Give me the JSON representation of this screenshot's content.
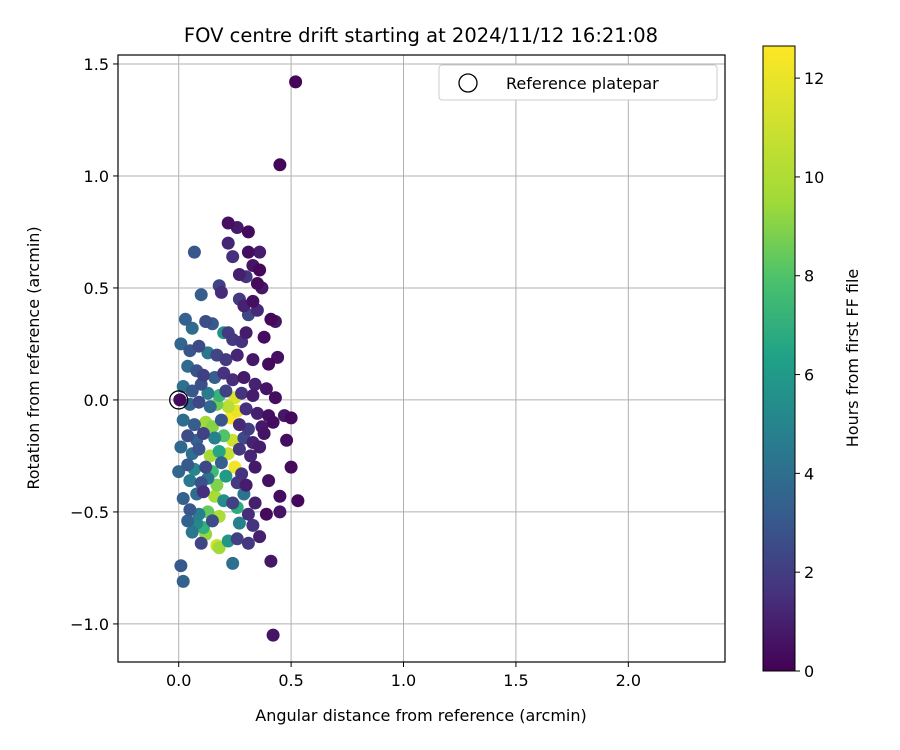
{
  "chart_data": {
    "type": "scatter",
    "title": "FOV centre drift starting at 2024/11/12 16:21:08",
    "xlabel": "Angular distance from reference (arcmin)",
    "ylabel": "Rotation from reference (arcmin)",
    "xlim": [
      -0.27,
      2.43
    ],
    "ylim": [
      -1.17,
      1.54
    ],
    "xticks": [
      0.0,
      0.5,
      1.0,
      1.5,
      2.0
    ],
    "xtick_labels": [
      "0.0",
      "0.5",
      "1.0",
      "1.5",
      "2.0"
    ],
    "yticks": [
      -1.0,
      -0.5,
      0.0,
      0.5,
      1.0,
      1.5
    ],
    "ytick_labels": [
      "−1.0",
      "−0.5",
      "0.0",
      "0.5",
      "1.0",
      "1.5"
    ],
    "grid": true,
    "legend": {
      "placement": "top-right",
      "entries": [
        "Reference platepar"
      ]
    },
    "reference_point": {
      "x": 0.0,
      "y": 0.0
    },
    "colorbar": {
      "label": "Hours from first FF file",
      "range": [
        0,
        12.65
      ],
      "ticks": [
        0,
        2,
        4,
        6,
        8,
        10,
        12
      ],
      "tick_labels": [
        "0",
        "2",
        "4",
        "6",
        "8",
        "10",
        "12"
      ],
      "colormap": "viridis"
    },
    "points": [
      {
        "x": 0.52,
        "y": 1.42,
        "h": 0.1
      },
      {
        "x": 0.45,
        "y": 1.05,
        "h": 0.2
      },
      {
        "x": 0.22,
        "y": 0.79,
        "h": 0.5
      },
      {
        "x": 0.31,
        "y": 0.75,
        "h": 0.3
      },
      {
        "x": 0.26,
        "y": 0.77,
        "h": 0.8
      },
      {
        "x": 0.07,
        "y": 0.66,
        "h": 3.0
      },
      {
        "x": 0.31,
        "y": 0.66,
        "h": 0.4
      },
      {
        "x": 0.36,
        "y": 0.66,
        "h": 0.9
      },
      {
        "x": 0.22,
        "y": 0.7,
        "h": 1.2
      },
      {
        "x": 0.24,
        "y": 0.64,
        "h": 1.5
      },
      {
        "x": 0.33,
        "y": 0.6,
        "h": 0.6
      },
      {
        "x": 0.36,
        "y": 0.58,
        "h": 0.2
      },
      {
        "x": 0.27,
        "y": 0.56,
        "h": 1.0
      },
      {
        "x": 0.3,
        "y": 0.55,
        "h": 1.7
      },
      {
        "x": 0.1,
        "y": 0.47,
        "h": 3.2
      },
      {
        "x": 0.18,
        "y": 0.51,
        "h": 2.2
      },
      {
        "x": 0.19,
        "y": 0.48,
        "h": 1.4
      },
      {
        "x": 0.35,
        "y": 0.52,
        "h": 0.3
      },
      {
        "x": 0.37,
        "y": 0.5,
        "h": 0.7
      },
      {
        "x": 0.27,
        "y": 0.45,
        "h": 1.9
      },
      {
        "x": 0.29,
        "y": 0.42,
        "h": 1.1
      },
      {
        "x": 0.31,
        "y": 0.38,
        "h": 2.4
      },
      {
        "x": 0.33,
        "y": 0.44,
        "h": 0.5
      },
      {
        "x": 0.35,
        "y": 0.4,
        "h": 1.3
      },
      {
        "x": 0.41,
        "y": 0.36,
        "h": 0.2
      },
      {
        "x": 0.43,
        "y": 0.35,
        "h": 0.6
      },
      {
        "x": 0.03,
        "y": 0.36,
        "h": 3.4
      },
      {
        "x": 0.06,
        "y": 0.32,
        "h": 3.9
      },
      {
        "x": 0.12,
        "y": 0.35,
        "h": 2.6
      },
      {
        "x": 0.15,
        "y": 0.34,
        "h": 3.1
      },
      {
        "x": 0.2,
        "y": 0.3,
        "h": 5.6
      },
      {
        "x": 0.22,
        "y": 0.3,
        "h": 2.0
      },
      {
        "x": 0.24,
        "y": 0.27,
        "h": 1.8
      },
      {
        "x": 0.28,
        "y": 0.26,
        "h": 1.6
      },
      {
        "x": 0.3,
        "y": 0.3,
        "h": 0.9
      },
      {
        "x": 0.38,
        "y": 0.28,
        "h": 0.4
      },
      {
        "x": 0.01,
        "y": 0.25,
        "h": 3.6
      },
      {
        "x": 0.05,
        "y": 0.22,
        "h": 2.9
      },
      {
        "x": 0.09,
        "y": 0.24,
        "h": 2.5
      },
      {
        "x": 0.13,
        "y": 0.21,
        "h": 4.4
      },
      {
        "x": 0.17,
        "y": 0.2,
        "h": 2.3
      },
      {
        "x": 0.21,
        "y": 0.18,
        "h": 1.9
      },
      {
        "x": 0.26,
        "y": 0.2,
        "h": 1.2
      },
      {
        "x": 0.33,
        "y": 0.18,
        "h": 0.7
      },
      {
        "x": 0.44,
        "y": 0.19,
        "h": 0.5
      },
      {
        "x": 0.4,
        "y": 0.16,
        "h": 0.3
      },
      {
        "x": 0.04,
        "y": 0.15,
        "h": 3.8
      },
      {
        "x": 0.08,
        "y": 0.13,
        "h": 2.8
      },
      {
        "x": 0.11,
        "y": 0.11,
        "h": 2.1
      },
      {
        "x": 0.16,
        "y": 0.1,
        "h": 3.3
      },
      {
        "x": 0.2,
        "y": 0.12,
        "h": 1.6
      },
      {
        "x": 0.24,
        "y": 0.09,
        "h": 1.4
      },
      {
        "x": 0.29,
        "y": 0.1,
        "h": 0.8
      },
      {
        "x": 0.34,
        "y": 0.07,
        "h": 1.1
      },
      {
        "x": 0.39,
        "y": 0.05,
        "h": 0.6
      },
      {
        "x": 0.02,
        "y": 0.06,
        "h": 4.1
      },
      {
        "x": 0.06,
        "y": 0.04,
        "h": 3.0
      },
      {
        "x": 0.1,
        "y": 0.07,
        "h": 2.7
      },
      {
        "x": 0.13,
        "y": 0.03,
        "h": 4.6
      },
      {
        "x": 0.18,
        "y": 0.02,
        "h": 7.2
      },
      {
        "x": 0.21,
        "y": 0.04,
        "h": 2.2
      },
      {
        "x": 0.25,
        "y": 0.01,
        "h": 11.5
      },
      {
        "x": 0.28,
        "y": 0.03,
        "h": 1.7
      },
      {
        "x": 0.33,
        "y": 0.02,
        "h": 0.9
      },
      {
        "x": 0.43,
        "y": 0.01,
        "h": 0.4
      },
      {
        "x": 0.005,
        "y": 0.0,
        "h": 0.3
      },
      {
        "x": 0.05,
        "y": -0.02,
        "h": 3.5
      },
      {
        "x": 0.09,
        "y": -0.01,
        "h": 2.4
      },
      {
        "x": 0.14,
        "y": -0.03,
        "h": 3.7
      },
      {
        "x": 0.17,
        "y": -0.02,
        "h": 8.6
      },
      {
        "x": 0.22,
        "y": -0.03,
        "h": 10.4
      },
      {
        "x": 0.26,
        "y": -0.05,
        "h": 12.0
      },
      {
        "x": 0.3,
        "y": -0.04,
        "h": 1.5
      },
      {
        "x": 0.35,
        "y": -0.06,
        "h": 1.0
      },
      {
        "x": 0.4,
        "y": -0.07,
        "h": 0.5
      },
      {
        "x": 0.5,
        "y": -0.08,
        "h": 0.3
      },
      {
        "x": 0.47,
        "y": -0.07,
        "h": 0.7
      },
      {
        "x": 0.02,
        "y": -0.09,
        "h": 3.9
      },
      {
        "x": 0.07,
        "y": -0.11,
        "h": 3.2
      },
      {
        "x": 0.12,
        "y": -0.1,
        "h": 9.5
      },
      {
        "x": 0.15,
        "y": -0.12,
        "h": 9.0
      },
      {
        "x": 0.19,
        "y": -0.09,
        "h": 2.9
      },
      {
        "x": 0.23,
        "y": -0.08,
        "h": 12.5
      },
      {
        "x": 0.27,
        "y": -0.11,
        "h": 1.3
      },
      {
        "x": 0.31,
        "y": -0.13,
        "h": 2.0
      },
      {
        "x": 0.37,
        "y": -0.12,
        "h": 0.8
      },
      {
        "x": 0.42,
        "y": -0.1,
        "h": 0.4
      },
      {
        "x": 0.04,
        "y": -0.16,
        "h": 2.6
      },
      {
        "x": 0.08,
        "y": -0.18,
        "h": 3.4
      },
      {
        "x": 0.11,
        "y": -0.15,
        "h": 2.2
      },
      {
        "x": 0.16,
        "y": -0.17,
        "h": 4.8
      },
      {
        "x": 0.2,
        "y": -0.16,
        "h": 8.0
      },
      {
        "x": 0.24,
        "y": -0.18,
        "h": 11.0
      },
      {
        "x": 0.29,
        "y": -0.17,
        "h": 2.5
      },
      {
        "x": 0.33,
        "y": -0.19,
        "h": 1.1
      },
      {
        "x": 0.38,
        "y": -0.15,
        "h": 0.6
      },
      {
        "x": 0.48,
        "y": -0.18,
        "h": 0.4
      },
      {
        "x": 0.01,
        "y": -0.21,
        "h": 3.7
      },
      {
        "x": 0.06,
        "y": -0.24,
        "h": 4.0
      },
      {
        "x": 0.09,
        "y": -0.22,
        "h": 2.9
      },
      {
        "x": 0.14,
        "y": -0.25,
        "h": 9.7
      },
      {
        "x": 0.18,
        "y": -0.23,
        "h": 6.5
      },
      {
        "x": 0.22,
        "y": -0.24,
        "h": 10.8
      },
      {
        "x": 0.27,
        "y": -0.22,
        "h": 1.8
      },
      {
        "x": 0.32,
        "y": -0.25,
        "h": 1.2
      },
      {
        "x": 0.36,
        "y": -0.21,
        "h": 0.9
      },
      {
        "x": 0.04,
        "y": -0.29,
        "h": 3.1
      },
      {
        "x": 0.07,
        "y": -0.31,
        "h": 5.0
      },
      {
        "x": 0.12,
        "y": -0.3,
        "h": 2.4
      },
      {
        "x": 0.15,
        "y": -0.32,
        "h": 7.6
      },
      {
        "x": 0.19,
        "y": -0.28,
        "h": 3.3
      },
      {
        "x": 0.25,
        "y": -0.3,
        "h": 12.2
      },
      {
        "x": 0.28,
        "y": -0.33,
        "h": 1.6
      },
      {
        "x": 0.34,
        "y": -0.3,
        "h": 0.8
      },
      {
        "x": 0.5,
        "y": -0.3,
        "h": 0.3
      },
      {
        "x": 0.0,
        "y": -0.32,
        "h": 3.6
      },
      {
        "x": 0.05,
        "y": -0.36,
        "h": 4.5
      },
      {
        "x": 0.1,
        "y": -0.37,
        "h": 2.8
      },
      {
        "x": 0.13,
        "y": -0.35,
        "h": 4.2
      },
      {
        "x": 0.17,
        "y": -0.38,
        "h": 8.9
      },
      {
        "x": 0.21,
        "y": -0.34,
        "h": 6.0
      },
      {
        "x": 0.26,
        "y": -0.37,
        "h": 1.9
      },
      {
        "x": 0.3,
        "y": -0.38,
        "h": 0.9
      },
      {
        "x": 0.4,
        "y": -0.36,
        "h": 0.5
      },
      {
        "x": 0.02,
        "y": -0.44,
        "h": 3.4
      },
      {
        "x": 0.08,
        "y": -0.42,
        "h": 3.9
      },
      {
        "x": 0.11,
        "y": -0.41,
        "h": 1.5
      },
      {
        "x": 0.16,
        "y": -0.43,
        "h": 9.8
      },
      {
        "x": 0.2,
        "y": -0.45,
        "h": 5.4
      },
      {
        "x": 0.24,
        "y": -0.46,
        "h": 2.2
      },
      {
        "x": 0.29,
        "y": -0.42,
        "h": 4.2
      },
      {
        "x": 0.34,
        "y": -0.46,
        "h": 1.0
      },
      {
        "x": 0.45,
        "y": -0.43,
        "h": 0.4
      },
      {
        "x": 0.53,
        "y": -0.45,
        "h": 0.2
      },
      {
        "x": 0.05,
        "y": -0.49,
        "h": 3.0
      },
      {
        "x": 0.09,
        "y": -0.51,
        "h": 4.7
      },
      {
        "x": 0.13,
        "y": -0.5,
        "h": 8.4
      },
      {
        "x": 0.18,
        "y": -0.52,
        "h": 9.9
      },
      {
        "x": 0.26,
        "y": -0.48,
        "h": 6.8
      },
      {
        "x": 0.31,
        "y": -0.51,
        "h": 1.4
      },
      {
        "x": 0.39,
        "y": -0.51,
        "h": 0.3
      },
      {
        "x": 0.45,
        "y": -0.5,
        "h": 0.6
      },
      {
        "x": 0.04,
        "y": -0.54,
        "h": 3.5
      },
      {
        "x": 0.08,
        "y": -0.55,
        "h": 5.2
      },
      {
        "x": 0.11,
        "y": -0.57,
        "h": 7.0
      },
      {
        "x": 0.15,
        "y": -0.54,
        "h": 2.6
      },
      {
        "x": 0.27,
        "y": -0.55,
        "h": 4.8
      },
      {
        "x": 0.33,
        "y": -0.56,
        "h": 1.7
      },
      {
        "x": 0.06,
        "y": -0.59,
        "h": 4.3
      },
      {
        "x": 0.12,
        "y": -0.6,
        "h": 9.3
      },
      {
        "x": 0.22,
        "y": -0.63,
        "h": 5.8
      },
      {
        "x": 0.26,
        "y": -0.62,
        "h": 2.1
      },
      {
        "x": 0.36,
        "y": -0.61,
        "h": 1.0
      },
      {
        "x": 0.1,
        "y": -0.64,
        "h": 2.3
      },
      {
        "x": 0.17,
        "y": -0.65,
        "h": 11.0
      },
      {
        "x": 0.18,
        "y": -0.66,
        "h": 9.5
      },
      {
        "x": 0.31,
        "y": -0.64,
        "h": 1.8
      },
      {
        "x": 0.41,
        "y": -0.72,
        "h": 0.7
      },
      {
        "x": 0.24,
        "y": -0.73,
        "h": 4.0
      },
      {
        "x": 0.01,
        "y": -0.74,
        "h": 3.1
      },
      {
        "x": 0.02,
        "y": -0.81,
        "h": 3.5
      },
      {
        "x": 0.42,
        "y": -1.05,
        "h": 0.6
      }
    ]
  }
}
